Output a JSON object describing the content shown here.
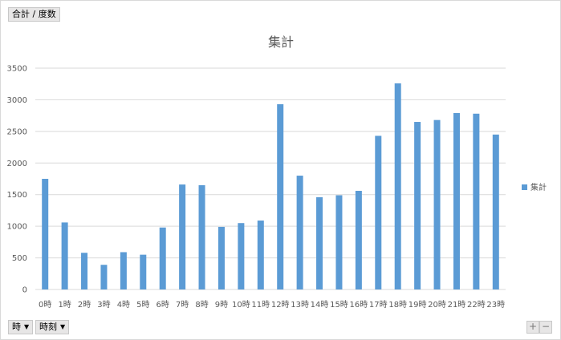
{
  "pivot": {
    "value_field": "合計 / 度数",
    "axis_fields": [
      "時",
      "時刻"
    ],
    "zoom_in": "+",
    "zoom_out": "−"
  },
  "colors": {
    "bar": "#5b9bd5",
    "grid": "#d9d9d9",
    "text": "#595959"
  },
  "chart_data": {
    "type": "bar",
    "title": "集計",
    "xlabel": "",
    "ylabel": "",
    "categories": [
      "0時",
      "1時",
      "2時",
      "3時",
      "4時",
      "5時",
      "6時",
      "7時",
      "8時",
      "9時",
      "10時",
      "11時",
      "12時",
      "13時",
      "14時",
      "15時",
      "16時",
      "17時",
      "18時",
      "19時",
      "20時",
      "21時",
      "22時",
      "23時"
    ],
    "series": [
      {
        "name": "集計",
        "values": [
          1750,
          1060,
          580,
          390,
          590,
          550,
          980,
          1660,
          1650,
          990,
          1050,
          1090,
          2930,
          1800,
          1460,
          1490,
          1560,
          2430,
          3260,
          2650,
          2680,
          2790,
          2780,
          2450
        ]
      }
    ],
    "ylim": [
      0,
      3500
    ],
    "yticks": [
      0,
      500,
      1000,
      1500,
      2000,
      2500,
      3000,
      3500
    ],
    "grid": true,
    "legend": "right"
  }
}
